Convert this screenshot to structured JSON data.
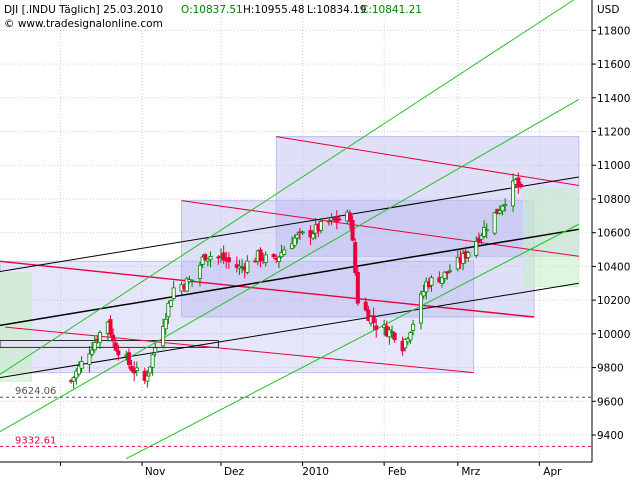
{
  "header": {
    "symbol": "DJI [.INDU Täglich] 25.03.2010",
    "open": "O:10837.51",
    "high": "H:10955.48",
    "low": "L:10834.19",
    "close": "C:10841.21",
    "copyright": "© www.tradesignalonline.com"
  },
  "colors": {
    "open": "#008000",
    "close": "#008000",
    "text": "#000000",
    "channel_red": "#e8003c",
    "channel_black": "#000000",
    "channel_green": "#22c022",
    "fill_blue": "#b8b8f0",
    "fill_green": "#c8eec8",
    "up_candle": "#008000",
    "down_candle": "#e8003c"
  },
  "chart_data": {
    "type": "candlestick",
    "currency": "USD",
    "x_labels": [
      "Nov",
      "Dez",
      "2010",
      "Feb",
      "Mrz",
      "Apr"
    ],
    "y_ticks": [
      9400,
      9600,
      9800,
      10000,
      10200,
      10400,
      10600,
      10800,
      11000,
      11200,
      11400,
      11600,
      11800
    ],
    "ylim": [
      9240,
      11980
    ],
    "start_date": "2009-10-05",
    "levels": [
      {
        "label": "9624.06",
        "value": 9624.06
      },
      {
        "label": "9332.61",
        "value": 9332.61
      }
    ],
    "series_path": [
      [
        "2009-10-05",
        9720
      ],
      [
        "2009-10-13",
        9930
      ],
      [
        "2009-10-19",
        10080
      ],
      [
        "2009-10-21",
        9950
      ],
      [
        "2009-10-28",
        9800
      ],
      [
        "2009-11-02",
        9720
      ],
      [
        "2009-11-06",
        9920
      ],
      [
        "2009-11-13",
        10270
      ],
      [
        "2009-11-20",
        10320
      ],
      [
        "2009-11-25",
        10470
      ],
      [
        "2009-12-01",
        10450
      ],
      [
        "2009-12-08",
        10390
      ],
      [
        "2009-12-15",
        10460
      ],
      [
        "2009-12-21",
        10430
      ],
      [
        "2009-12-28",
        10560
      ],
      [
        "2010-01-04",
        10600
      ],
      [
        "2010-01-11",
        10660
      ],
      [
        "2010-01-19",
        10700
      ],
      [
        "2010-01-22",
        10200
      ],
      [
        "2010-01-29",
        10050
      ],
      [
        "2010-02-05",
        10000
      ],
      [
        "2010-02-08",
        9930
      ],
      [
        "2010-02-12",
        10070
      ],
      [
        "2010-02-17",
        10300
      ],
      [
        "2010-02-24",
        10350
      ],
      [
        "2010-03-03",
        10450
      ],
      [
        "2010-03-10",
        10600
      ],
      [
        "2010-03-17",
        10750
      ],
      [
        "2010-03-23",
        10900
      ],
      [
        "2010-03-25",
        10841
      ]
    ],
    "channels": [
      {
        "name": "red_upper",
        "color": "#e8003c",
        "width": 1,
        "x1": "2009-12-22",
        "y1": 11170,
        "x2": "2010-04-16",
        "y2": 10880
      },
      {
        "name": "red_mid",
        "color": "#e8003c",
        "width": 1,
        "x1": "2009-11-16",
        "y1": 10790,
        "x2": "2010-04-16",
        "y2": 10460
      },
      {
        "name": "red_main",
        "color": "#e8003c",
        "width": 1.4,
        "x1": "2009-09-08",
        "y1": 10430,
        "x2": "2010-03-30",
        "y2": 10100
      },
      {
        "name": "red_lower",
        "color": "#e8003c",
        "width": 1,
        "x1": "2009-09-10",
        "y1": 10040,
        "x2": "2010-03-07",
        "y2": 9770
      },
      {
        "name": "black_upper",
        "color": "#000000",
        "width": 1,
        "x1": "2009-09-08",
        "y1": 10370,
        "x2": "2010-04-16",
        "y2": 10930
      },
      {
        "name": "black_main",
        "color": "#000000",
        "width": 1.5,
        "x1": "2009-09-08",
        "y1": 10050,
        "x2": "2010-04-16",
        "y2": 10620
      },
      {
        "name": "black_lower",
        "color": "#000000",
        "width": 1,
        "x1": "2009-09-08",
        "y1": 9740,
        "x2": "2010-04-16",
        "y2": 10300
      },
      {
        "name": "green_upper",
        "color": "#22c022",
        "width": 1,
        "x1": "2009-09-08",
        "y1": 9760,
        "x2": "2010-04-14",
        "y2": 11980
      },
      {
        "name": "green_main",
        "color": "#22c022",
        "width": 1,
        "x1": "2009-09-08",
        "y1": 9420,
        "x2": "2010-04-16",
        "y2": 11390
      },
      {
        "name": "green_lower",
        "color": "#22c022",
        "width": 1,
        "x1": "2009-10-26",
        "y1": 9260,
        "x2": "2010-04-16",
        "y2": 10650
      }
    ],
    "boxes": [
      {
        "name": "box-dec-apr",
        "x1": "2009-12-22",
        "x2": "2010-04-16",
        "y1": 10460,
        "y2": 11170,
        "color": "#b8b8f0",
        "opacity": 0.45
      },
      {
        "name": "box-nov-mar-mid",
        "x1": "2009-11-16",
        "x2": "2010-03-30",
        "y1": 10100,
        "y2": 10790,
        "color": "#b8b8f0",
        "opacity": 0.45
      },
      {
        "name": "box-sep-mar",
        "x1": "2009-09-08",
        "x2": "2010-03-07",
        "y1": 9770,
        "y2": 10430,
        "color": "#b8b8f0",
        "opacity": 0.35
      },
      {
        "name": "box-green-right",
        "x1": "2010-03-26",
        "x2": "2010-04-16",
        "y1": 10280,
        "y2": 10860,
        "color": "#c8eec8",
        "opacity": 0.6
      },
      {
        "name": "box-green-left",
        "x1": "2009-09-08",
        "x2": "2009-09-20",
        "y1": 9720,
        "y2": 10360,
        "color": "#c8eec8",
        "opacity": 0.6
      }
    ],
    "small_rect": {
      "x1": "2009-09-08",
      "x2": "2009-11-30",
      "y1": 9920,
      "y2": 9960
    }
  }
}
